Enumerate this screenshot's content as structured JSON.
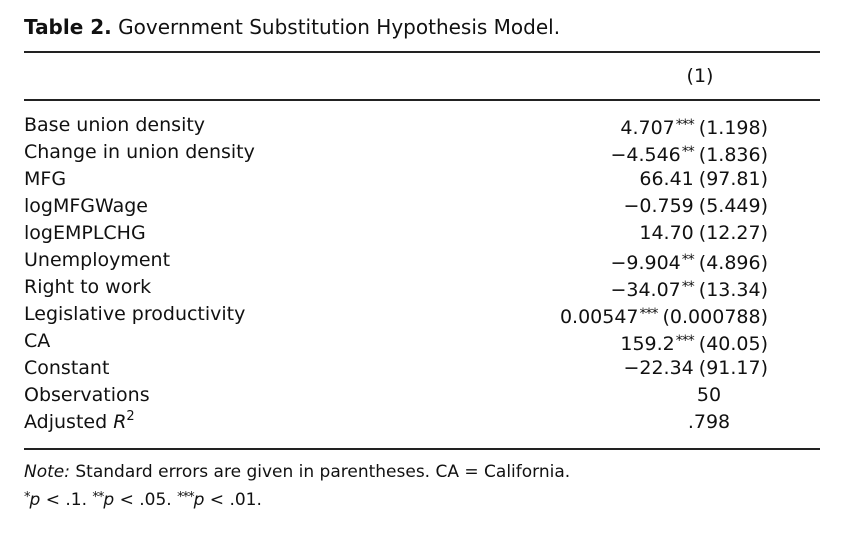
{
  "caption": {
    "label": "Table 2.",
    "title": "Government Substitution Hypothesis Model."
  },
  "table": {
    "column_header": "(1)",
    "rows": [
      {
        "name": "Base union density",
        "coef": "4.707",
        "stars": "***",
        "se": "(1.198)"
      },
      {
        "name": "Change in union density",
        "coef": "−4.546",
        "stars": "**",
        "se": "(1.836)"
      },
      {
        "name": "MFG",
        "coef": "66.41",
        "stars": "",
        "se": "(97.81)"
      },
      {
        "name": "logMFGWage",
        "coef": "−0.759",
        "stars": "",
        "se": "(5.449)"
      },
      {
        "name": "logEMPLCHG",
        "coef": "14.70",
        "stars": "",
        "se": "(12.27)"
      },
      {
        "name": "Unemployment",
        "coef": "−9.904",
        "stars": "**",
        "se": "(4.896)"
      },
      {
        "name": "Right to work",
        "coef": "−34.07",
        "stars": "**",
        "se": "(13.34)"
      },
      {
        "name": "Legislative productivity",
        "coef": "0.00547",
        "stars": "***",
        "se": "(0.000788)"
      },
      {
        "name": "CA",
        "coef": "159.2",
        "stars": "***",
        "se": "(40.05)"
      },
      {
        "name": "Constant",
        "coef": "−22.34",
        "stars": "",
        "se": "(91.17)"
      }
    ],
    "observations": {
      "label": "Observations",
      "value": "50"
    },
    "adj_r2": {
      "label_prefix": "Adjusted ",
      "label_var": "R",
      "label_sup": "2",
      "value": ".798"
    }
  },
  "notes": {
    "note_label": "Note:",
    "note_text": " Standard errors are given in parentheses. CA = California.",
    "sig": [
      {
        "stars": "*",
        "p": "p",
        "text": " < .1. "
      },
      {
        "stars": "**",
        "p": "p",
        "text": " < .05. "
      },
      {
        "stars": "***",
        "p": "p",
        "text": " < .01."
      }
    ]
  }
}
